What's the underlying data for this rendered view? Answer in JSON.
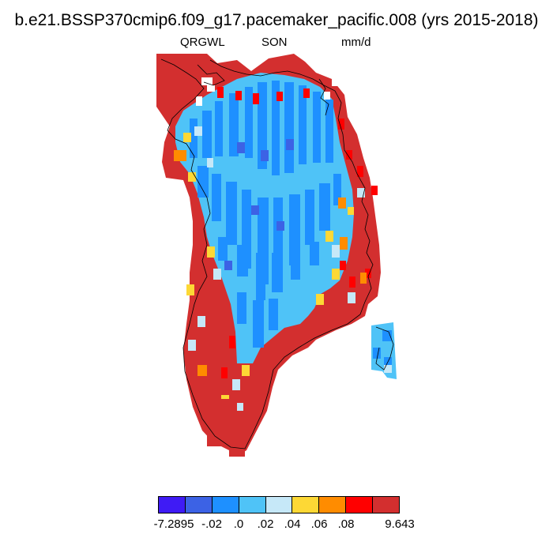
{
  "title": "b.e21.BSSP370cmip6.f09_g17.pacemaker_pacific.008 (yrs 2015-2018)",
  "subtitle": {
    "left": "QRGWL",
    "center": "SON",
    "right": "mm/d"
  },
  "colors": {
    "ocean": "#ffffff",
    "coastline": "#000000",
    "levels": [
      "#3f1bf5",
      "#3c62e5",
      "#1e90ff",
      "#4fc3f7",
      "#c6e8f8",
      "#fdd835",
      "#ff8c00",
      "#ff0000",
      "#d32f2f"
    ]
  },
  "colorbar": {
    "tick_labels": [
      "-7.2895",
      "-.02",
      ".0",
      ".02",
      ".04",
      ".06",
      ".08",
      "9.643"
    ]
  },
  "map_fields": {
    "dominant_interior": "light blue (0 to .02)",
    "dominant_margin": "dark red (.08 to 9.643)"
  }
}
